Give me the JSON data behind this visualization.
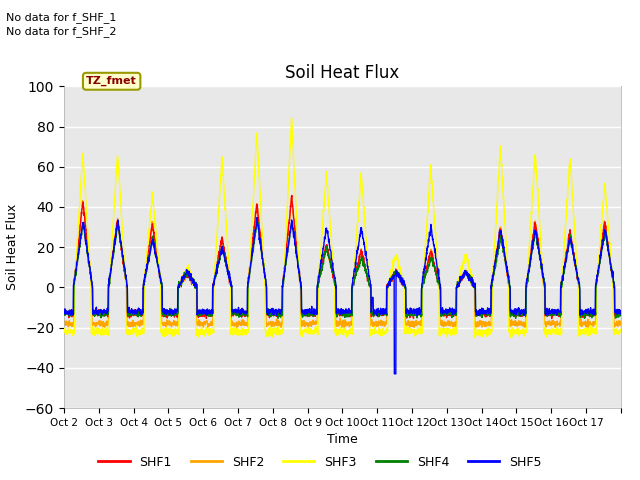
{
  "title": "Soil Heat Flux",
  "xlabel": "Time",
  "ylabel": "Soil Heat Flux",
  "ylim": [
    -60,
    100
  ],
  "yticks": [
    -60,
    -40,
    -20,
    0,
    20,
    40,
    60,
    80,
    100
  ],
  "background_color": "#e8e8e8",
  "series_colors": [
    "red",
    "orange",
    "yellow",
    "green",
    "blue"
  ],
  "series_names": [
    "SHF1",
    "SHF2",
    "SHF3",
    "SHF4",
    "SHF5"
  ],
  "no_data_text_1": "No data for f_SHF_1",
  "no_data_text_2": "No data for f_SHF_2",
  "legend_label": "TZ_fmet",
  "x_ticklabels": [
    "Oct 2",
    "Oct 3",
    "Oct 4",
    "Oct 5",
    "Oct 6",
    "Oct 7",
    "Oct 8",
    "Oct 9",
    "Oct 10",
    "Oct 11",
    "Oct 12",
    "Oct 13",
    "Oct 14",
    "Oct 15",
    "Oct 16",
    "Oct 17"
  ],
  "num_days": 16,
  "pts_per_day": 144,
  "shf3_peaks": [
    67,
    67,
    47,
    10,
    64,
    77,
    84,
    57,
    57,
    17,
    60,
    17,
    70,
    68,
    65,
    52
  ],
  "shf1_peaks": [
    43,
    34,
    32,
    7,
    25,
    42,
    45,
    22,
    18,
    8,
    18,
    8,
    30,
    33,
    28,
    33
  ],
  "shf2_peaks": [
    43,
    34,
    32,
    7,
    25,
    42,
    44,
    21,
    18,
    8,
    18,
    8,
    30,
    33,
    28,
    33
  ],
  "shf4_peaks": [
    32,
    32,
    25,
    8,
    20,
    33,
    33,
    20,
    15,
    8,
    15,
    8,
    25,
    28,
    25,
    28
  ],
  "shf5_peaks": [
    33,
    33,
    24,
    8,
    20,
    34,
    33,
    30,
    30,
    8,
    30,
    8,
    29,
    29,
    25,
    29
  ],
  "shf1_night": -13,
  "shf2_night": -18,
  "shf3_night": -22,
  "shf4_night": -13,
  "shf5_night": -12,
  "spike_day": 9,
  "spike_val": -43
}
